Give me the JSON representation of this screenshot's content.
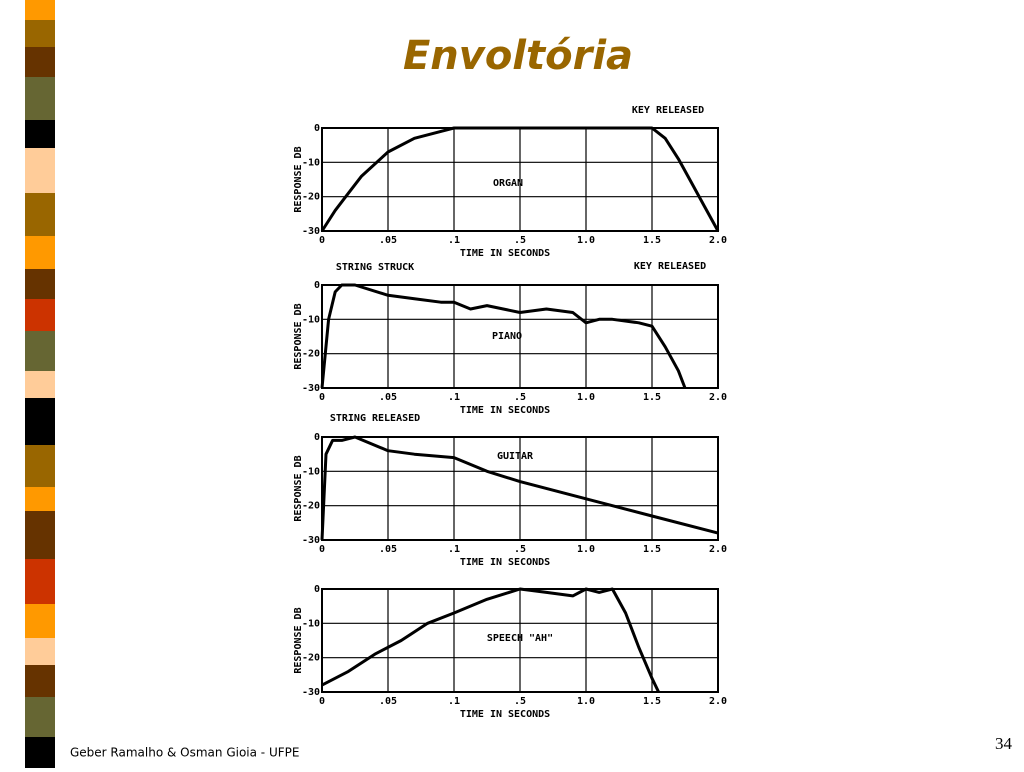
{
  "slide": {
    "title": "Envoltória",
    "footer": "Geber Ramalho & Osman Gioia - UFPE",
    "page": "34"
  },
  "chart_data": [
    {
      "type": "line",
      "title": "ORGAN",
      "annotations": [
        "KEY RELEASED"
      ],
      "xlabel": "TIME IN SECONDS",
      "ylabel": "RESPONSE DB",
      "x": [
        0,
        0.01,
        0.02,
        0.03,
        0.05,
        0.07,
        0.09,
        0.1,
        0.3,
        0.5,
        1.0,
        1.5,
        1.6,
        1.7,
        1.8,
        1.9,
        2.0
      ],
      "values": [
        -30,
        -24,
        -19,
        -14,
        -7,
        -3,
        -1,
        0,
        0,
        0,
        0,
        0,
        -3,
        -9,
        -16,
        -23,
        -30
      ],
      "xlim": [
        0,
        2
      ],
      "xticks": [
        0,
        {
          "value": 0.05,
          "label": ".05"
        },
        {
          "value": 0.1,
          "label": ".1"
        },
        {
          "value": 0.5,
          "label": ".5"
        },
        {
          "value": 1,
          "label": "1.0"
        },
        {
          "value": 1.5,
          "label": "1.5"
        },
        {
          "value": 2,
          "label": "2.0"
        }
      ],
      "ylim": [
        -30,
        0
      ],
      "yticks": [
        0,
        -10,
        -20,
        -30
      ],
      "grid": true,
      "color": "#000000"
    },
    {
      "type": "line",
      "title": "PIANO",
      "annotations": [
        "STRING STRUCK",
        "KEY RELEASED"
      ],
      "xlabel": "TIME IN SECONDS",
      "ylabel": "RESPONSE DB",
      "x": [
        0,
        0.005,
        0.01,
        0.015,
        0.025,
        0.05,
        0.07,
        0.09,
        0.1,
        0.2,
        0.3,
        0.5,
        0.7,
        0.9,
        1.0,
        1.1,
        1.2,
        1.4,
        1.5,
        1.6,
        1.7,
        1.75
      ],
      "values": [
        -30,
        -10,
        -2,
        0,
        0,
        -3,
        -4,
        -5,
        -5,
        -7,
        -6,
        -8,
        -7,
        -8,
        -11,
        -10,
        -10,
        -11,
        -12,
        -18,
        -25,
        -30
      ],
      "xlim": [
        0,
        2
      ],
      "xticks": [
        0,
        {
          "value": 0.05,
          "label": ".05"
        },
        {
          "value": 0.1,
          "label": ".1"
        },
        {
          "value": 0.5,
          "label": ".5"
        },
        {
          "value": 1,
          "label": "1.0"
        },
        {
          "value": 1.5,
          "label": "1.5"
        },
        {
          "value": 2,
          "label": "2.0"
        }
      ],
      "ylim": [
        -30,
        0
      ],
      "yticks": [
        0,
        -10,
        -20,
        -30
      ],
      "grid": true,
      "color": "#000000"
    },
    {
      "type": "line",
      "title": "GUITAR",
      "annotations": [
        "STRING RELEASED"
      ],
      "xlabel": "TIME IN SECONDS",
      "ylabel": "RESPONSE DB",
      "x": [
        0,
        0.003,
        0.008,
        0.015,
        0.025,
        0.05,
        0.07,
        0.1,
        0.3,
        0.5,
        1.0,
        1.5,
        2.0
      ],
      "values": [
        -30,
        -5,
        -1,
        -1,
        0,
        -4,
        -5,
        -6,
        -10,
        -13,
        -18,
        -23,
        -28
      ],
      "xlim": [
        0,
        2
      ],
      "xticks": [
        0,
        {
          "value": 0.05,
          "label": ".05"
        },
        {
          "value": 0.1,
          "label": ".1"
        },
        {
          "value": 0.5,
          "label": ".5"
        },
        {
          "value": 1,
          "label": "1.0"
        },
        {
          "value": 1.5,
          "label": "1.5"
        },
        {
          "value": 2,
          "label": "2.0"
        }
      ],
      "ylim": [
        -30,
        0
      ],
      "yticks": [
        0,
        -10,
        -20,
        -30
      ],
      "grid": true,
      "color": "#000000"
    },
    {
      "type": "line",
      "title": "SPEECH \"AH\"",
      "annotations": [],
      "xlabel": "TIME IN SECONDS",
      "ylabel": "RESPONSE DB",
      "x": [
        0,
        0.02,
        0.04,
        0.06,
        0.08,
        0.1,
        0.3,
        0.5,
        0.7,
        0.9,
        1.0,
        1.1,
        1.2,
        1.3,
        1.4,
        1.5,
        1.55
      ],
      "values": [
        -28,
        -24,
        -19,
        -15,
        -10,
        -7,
        -3,
        0,
        -1,
        -2,
        0,
        -1,
        0,
        -7,
        -17,
        -26,
        -30
      ],
      "xlim": [
        0,
        2
      ],
      "xticks": [
        0,
        {
          "value": 0.05,
          "label": ".05"
        },
        {
          "value": 0.1,
          "label": ".1"
        },
        {
          "value": 0.5,
          "label": ".5"
        },
        {
          "value": 1,
          "label": "1.0"
        },
        {
          "value": 1.5,
          "label": "1.5"
        },
        {
          "value": 2,
          "label": "2.0"
        }
      ],
      "ylim": [
        -30,
        0
      ],
      "yticks": [
        0,
        -10,
        -20,
        -30
      ],
      "grid": true,
      "color": "#000000"
    }
  ]
}
